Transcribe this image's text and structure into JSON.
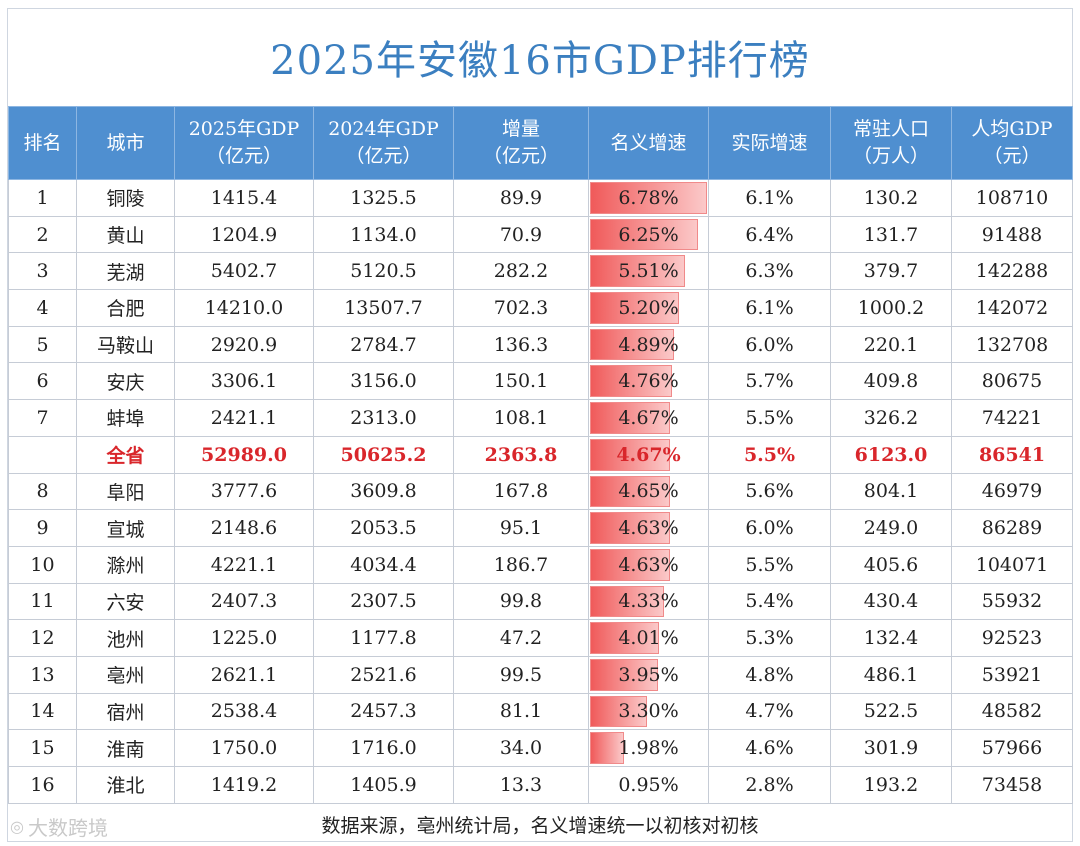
{
  "title": "2025年安徽16市GDP排行榜",
  "headers": [
    [
      "排名"
    ],
    [
      "城市"
    ],
    [
      "2025年GDP",
      "（亿元）"
    ],
    [
      "2024年GDP",
      "（亿元）"
    ],
    [
      "增量",
      "（亿元）"
    ],
    [
      "名义增速"
    ],
    [
      "实际增速"
    ],
    [
      "常驻人口",
      "（万人）"
    ],
    [
      "人均GDP",
      "（元）"
    ]
  ],
  "max_rate": 6.78,
  "colors": {
    "header_bg": "#4f8fd0",
    "title": "#3b7fc0",
    "province": "#d9262b",
    "bar": "#f05a5a"
  },
  "rows": [
    {
      "rank": "1",
      "city": "铜陵",
      "gdp2025": "1415.4",
      "gdp2024": "1325.5",
      "increase": "89.9",
      "nominal": "6.78%",
      "nominal_value": 6.78,
      "real": "6.1%",
      "population": "130.2",
      "per_capita": "108710",
      "bar": true
    },
    {
      "rank": "2",
      "city": "黄山",
      "gdp2025": "1204.9",
      "gdp2024": "1134.0",
      "increase": "70.9",
      "nominal": "6.25%",
      "nominal_value": 6.25,
      "real": "6.4%",
      "population": "131.7",
      "per_capita": "91488",
      "bar": true
    },
    {
      "rank": "3",
      "city": "芜湖",
      "gdp2025": "5402.7",
      "gdp2024": "5120.5",
      "increase": "282.2",
      "nominal": "5.51%",
      "nominal_value": 5.51,
      "real": "6.3%",
      "population": "379.7",
      "per_capita": "142288",
      "bar": true
    },
    {
      "rank": "4",
      "city": "合肥",
      "gdp2025": "14210.0",
      "gdp2024": "13507.7",
      "increase": "702.3",
      "nominal": "5.20%",
      "nominal_value": 5.2,
      "real": "6.1%",
      "population": "1000.2",
      "per_capita": "142072",
      "bar": true
    },
    {
      "rank": "5",
      "city": "马鞍山",
      "gdp2025": "2920.9",
      "gdp2024": "2784.7",
      "increase": "136.3",
      "nominal": "4.89%",
      "nominal_value": 4.89,
      "real": "6.0%",
      "population": "220.1",
      "per_capita": "132708",
      "bar": true
    },
    {
      "rank": "6",
      "city": "安庆",
      "gdp2025": "3306.1",
      "gdp2024": "3156.0",
      "increase": "150.1",
      "nominal": "4.76%",
      "nominal_value": 4.76,
      "real": "5.7%",
      "population": "409.8",
      "per_capita": "80675",
      "bar": true
    },
    {
      "rank": "7",
      "city": "蚌埠",
      "gdp2025": "2421.1",
      "gdp2024": "2313.0",
      "increase": "108.1",
      "nominal": "4.67%",
      "nominal_value": 4.67,
      "real": "5.5%",
      "population": "326.2",
      "per_capita": "74221",
      "bar": true
    },
    {
      "rank": "",
      "city": "全省",
      "gdp2025": "52989.0",
      "gdp2024": "50625.2",
      "increase": "2363.8",
      "nominal": "4.67%",
      "nominal_value": 4.67,
      "real": "5.5%",
      "population": "6123.0",
      "per_capita": "86541",
      "bar": true,
      "province": true
    },
    {
      "rank": "8",
      "city": "阜阳",
      "gdp2025": "3777.6",
      "gdp2024": "3609.8",
      "increase": "167.8",
      "nominal": "4.65%",
      "nominal_value": 4.65,
      "real": "5.6%",
      "population": "804.1",
      "per_capita": "46979",
      "bar": true
    },
    {
      "rank": "9",
      "city": "宣城",
      "gdp2025": "2148.6",
      "gdp2024": "2053.5",
      "increase": "95.1",
      "nominal": "4.63%",
      "nominal_value": 4.63,
      "real": "6.0%",
      "population": "249.0",
      "per_capita": "86289",
      "bar": true
    },
    {
      "rank": "10",
      "city": "滁州",
      "gdp2025": "4221.1",
      "gdp2024": "4034.4",
      "increase": "186.7",
      "nominal": "4.63%",
      "nominal_value": 4.63,
      "real": "5.5%",
      "population": "405.6",
      "per_capita": "104071",
      "bar": true
    },
    {
      "rank": "11",
      "city": "六安",
      "gdp2025": "2407.3",
      "gdp2024": "2307.5",
      "increase": "99.8",
      "nominal": "4.33%",
      "nominal_value": 4.33,
      "real": "5.4%",
      "population": "430.4",
      "per_capita": "55932",
      "bar": true
    },
    {
      "rank": "12",
      "city": "池州",
      "gdp2025": "1225.0",
      "gdp2024": "1177.8",
      "increase": "47.2",
      "nominal": "4.01%",
      "nominal_value": 4.01,
      "real": "5.3%",
      "population": "132.4",
      "per_capita": "92523",
      "bar": true
    },
    {
      "rank": "13",
      "city": "亳州",
      "gdp2025": "2621.1",
      "gdp2024": "2521.6",
      "increase": "99.5",
      "nominal": "3.95%",
      "nominal_value": 3.95,
      "real": "4.8%",
      "population": "486.1",
      "per_capita": "53921",
      "bar": true
    },
    {
      "rank": "14",
      "city": "宿州",
      "gdp2025": "2538.4",
      "gdp2024": "2457.3",
      "increase": "81.1",
      "nominal": "3.30%",
      "nominal_value": 3.3,
      "real": "4.7%",
      "population": "522.5",
      "per_capita": "48582",
      "bar": true
    },
    {
      "rank": "15",
      "city": "淮南",
      "gdp2025": "1750.0",
      "gdp2024": "1716.0",
      "increase": "34.0",
      "nominal": "1.98%",
      "nominal_value": 1.98,
      "real": "4.6%",
      "population": "301.9",
      "per_capita": "57966",
      "bar": true
    },
    {
      "rank": "16",
      "city": "淮北",
      "gdp2025": "1419.2",
      "gdp2024": "1405.9",
      "increase": "13.3",
      "nominal": "0.95%",
      "nominal_value": 0.95,
      "real": "2.8%",
      "population": "193.2",
      "per_capita": "73458",
      "bar": false
    }
  ],
  "footer": "数据来源，亳州统计局，名义增速统一以初核对初核",
  "watermark": "大数跨境"
}
